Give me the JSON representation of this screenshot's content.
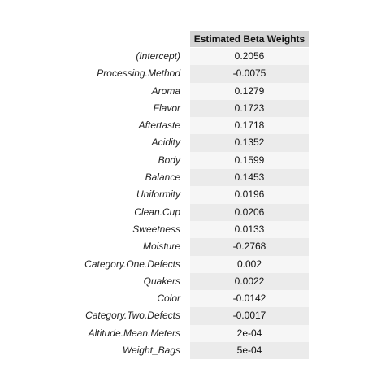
{
  "table": {
    "header": "Estimated Beta Weights",
    "rows": [
      {
        "label": "(Intercept)",
        "value": "0.2056"
      },
      {
        "label": "Processing.Method",
        "value": "-0.0075"
      },
      {
        "label": "Aroma",
        "value": "0.1279"
      },
      {
        "label": "Flavor",
        "value": "0.1723"
      },
      {
        "label": "Aftertaste",
        "value": "0.1718"
      },
      {
        "label": "Acidity",
        "value": "0.1352"
      },
      {
        "label": "Body",
        "value": "0.1599"
      },
      {
        "label": "Balance",
        "value": "0.1453"
      },
      {
        "label": "Uniformity",
        "value": "0.0196"
      },
      {
        "label": "Clean.Cup",
        "value": "0.0206"
      },
      {
        "label": "Sweetness",
        "value": "0.0133"
      },
      {
        "label": "Moisture",
        "value": "-0.2768"
      },
      {
        "label": "Category.One.Defects",
        "value": "0.002"
      },
      {
        "label": "Quakers",
        "value": "0.0022"
      },
      {
        "label": "Color",
        "value": "-0.0142"
      },
      {
        "label": "Category.Two.Defects",
        "value": "-0.0017"
      },
      {
        "label": "Altitude.Mean.Meters",
        "value": "2e-04"
      },
      {
        "label": "Weight_Bags",
        "value": "5e-04"
      }
    ]
  }
}
